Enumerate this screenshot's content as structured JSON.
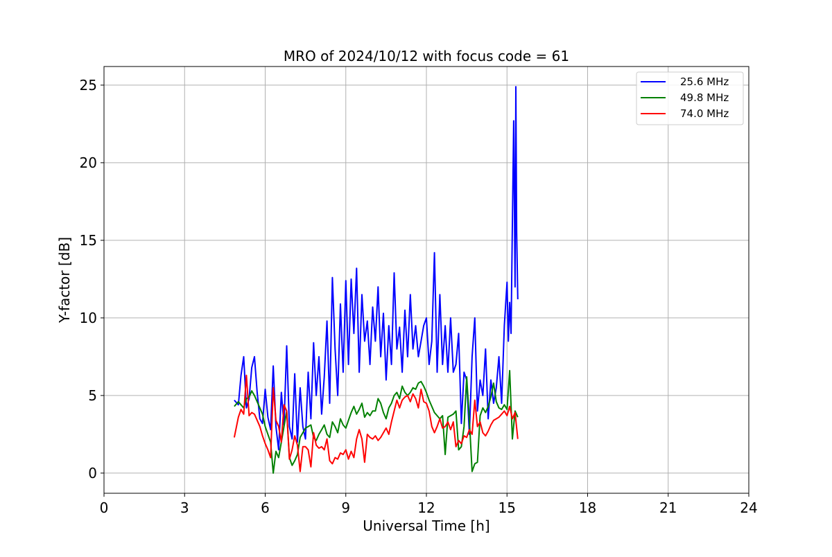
{
  "chart_data": {
    "type": "line",
    "title": "MRO of 2024/10/12 with focus code = 61",
    "xlabel": "Universal Time [h]",
    "ylabel": "Y-factor [dB]",
    "xlim": [
      0,
      24
    ],
    "ylim": [
      -1.3,
      26.2
    ],
    "xticks": [
      0,
      3,
      6,
      9,
      12,
      15,
      18,
      21,
      24
    ],
    "yticks": [
      0,
      5,
      10,
      15,
      20,
      25
    ],
    "grid": true,
    "legend_position": "top-right",
    "series": [
      {
        "name": "25.6 MHz",
        "color": "#0000ff",
        "x": [
          4.85,
          5.0,
          5.1,
          5.2,
          5.3,
          5.4,
          5.5,
          5.6,
          5.7,
          5.8,
          5.9,
          6.0,
          6.1,
          6.2,
          6.3,
          6.4,
          6.5,
          6.6,
          6.7,
          6.8,
          6.9,
          7.0,
          7.1,
          7.2,
          7.3,
          7.4,
          7.5,
          7.6,
          7.7,
          7.8,
          7.9,
          8.0,
          8.1,
          8.2,
          8.3,
          8.4,
          8.5,
          8.6,
          8.7,
          8.8,
          8.9,
          9.0,
          9.1,
          9.2,
          9.3,
          9.4,
          9.5,
          9.6,
          9.7,
          9.8,
          9.9,
          10.0,
          10.1,
          10.2,
          10.3,
          10.4,
          10.5,
          10.6,
          10.7,
          10.8,
          10.9,
          11.0,
          11.1,
          11.2,
          11.3,
          11.4,
          11.5,
          11.6,
          11.7,
          11.8,
          11.9,
          12.0,
          12.1,
          12.2,
          12.3,
          12.4,
          12.5,
          12.6,
          12.7,
          12.8,
          12.9,
          13.0,
          13.1,
          13.2,
          13.3,
          13.4,
          13.5,
          13.6,
          13.7,
          13.8,
          13.9,
          14.0,
          14.1,
          14.2,
          14.3,
          14.4,
          14.5,
          14.6,
          14.7,
          14.8,
          14.9,
          15.0,
          15.05,
          15.1,
          15.15,
          15.2,
          15.25,
          15.3,
          15.33,
          15.36,
          15.4
        ],
        "y": [
          4.7,
          4.4,
          6.3,
          7.5,
          4.2,
          4.8,
          6.8,
          7.5,
          5.2,
          3.5,
          3.2,
          5.4,
          3.6,
          2.8,
          6.9,
          3.0,
          1.5,
          5.2,
          3.1,
          8.2,
          3.0,
          2.2,
          6.4,
          2.0,
          5.5,
          3.0,
          2.2,
          6.5,
          3.5,
          8.4,
          5.0,
          7.5,
          3.8,
          6.2,
          9.8,
          4.5,
          12.6,
          8.0,
          5.0,
          10.9,
          6.5,
          12.4,
          7.0,
          12.5,
          9.0,
          13.2,
          6.5,
          11.5,
          8.5,
          9.8,
          7.0,
          10.7,
          8.5,
          12.0,
          7.5,
          10.3,
          6.0,
          9.5,
          7.0,
          12.9,
          8.0,
          9.4,
          6.5,
          10.5,
          7.5,
          11.5,
          8.0,
          9.5,
          7.5,
          8.5,
          9.5,
          10.0,
          7.0,
          8.5,
          14.2,
          6.5,
          11.5,
          7.0,
          9.5,
          6.5,
          10.0,
          6.5,
          7.0,
          9.0,
          3.2,
          6.5,
          6.0,
          2.5,
          7.5,
          10.0,
          4.0,
          6.0,
          5.0,
          8.0,
          3.5,
          6.0,
          4.5,
          5.5,
          7.5,
          4.5,
          9.5,
          12.3,
          8.5,
          11.0,
          9.0,
          16.0,
          22.7,
          12.0,
          24.9,
          15.5,
          11.2
        ]
      },
      {
        "name": "49.8 MHz",
        "color": "#008000",
        "x": [
          4.85,
          5.0,
          5.1,
          5.2,
          5.3,
          5.4,
          5.5,
          5.6,
          5.7,
          5.8,
          5.9,
          6.0,
          6.1,
          6.2,
          6.3,
          6.4,
          6.5,
          6.6,
          6.7,
          6.8,
          6.9,
          7.0,
          7.1,
          7.2,
          7.3,
          7.4,
          7.5,
          7.6,
          7.7,
          7.8,
          7.9,
          8.0,
          8.1,
          8.2,
          8.3,
          8.4,
          8.5,
          8.6,
          8.7,
          8.8,
          8.9,
          9.0,
          9.1,
          9.2,
          9.3,
          9.4,
          9.5,
          9.6,
          9.7,
          9.8,
          9.9,
          10.0,
          10.1,
          10.2,
          10.3,
          10.4,
          10.5,
          10.6,
          10.7,
          10.8,
          10.9,
          11.0,
          11.1,
          11.2,
          11.3,
          11.4,
          11.5,
          11.6,
          11.7,
          11.8,
          11.9,
          12.0,
          12.1,
          12.2,
          12.3,
          12.4,
          12.5,
          12.6,
          12.7,
          12.8,
          12.9,
          13.0,
          13.1,
          13.2,
          13.3,
          13.4,
          13.5,
          13.6,
          13.7,
          13.8,
          13.9,
          14.0,
          14.1,
          14.2,
          14.3,
          14.4,
          14.5,
          14.6,
          14.7,
          14.8,
          14.9,
          15.0,
          15.1,
          15.2,
          15.3,
          15.4
        ],
        "y": [
          4.3,
          4.6,
          4.4,
          4.2,
          4.8,
          4.9,
          5.3,
          5.0,
          4.6,
          4.2,
          3.8,
          3.0,
          2.5,
          2.0,
          0.0,
          1.4,
          1.0,
          2.0,
          3.0,
          4.0,
          1.0,
          0.5,
          0.8,
          1.2,
          2.3,
          2.6,
          2.9,
          3.0,
          3.1,
          2.3,
          2.1,
          2.5,
          2.8,
          3.1,
          2.5,
          2.3,
          3.3,
          3.0,
          2.6,
          3.5,
          3.1,
          2.9,
          3.4,
          3.9,
          4.3,
          3.8,
          4.1,
          4.5,
          3.6,
          3.9,
          3.7,
          4.0,
          4.0,
          4.8,
          4.5,
          3.9,
          3.5,
          4.2,
          4.5,
          5.0,
          5.2,
          4.8,
          5.6,
          5.2,
          5.0,
          5.2,
          5.5,
          5.4,
          5.8,
          5.9,
          5.6,
          5.2,
          4.7,
          4.3,
          3.9,
          3.7,
          3.5,
          3.7,
          1.2,
          3.6,
          3.7,
          3.8,
          4.0,
          1.5,
          1.7,
          3.0,
          6.2,
          3.4,
          0.1,
          0.6,
          0.7,
          3.7,
          4.2,
          3.9,
          4.3,
          4.9,
          5.8,
          4.6,
          4.2,
          4.1,
          4.4,
          4.1,
          6.6,
          2.2,
          4.0,
          3.6
        ]
      },
      {
        "name": "74.0 MHz",
        "color": "#ff0000",
        "x": [
          4.85,
          5.0,
          5.1,
          5.2,
          5.3,
          5.4,
          5.5,
          5.6,
          5.7,
          5.8,
          5.9,
          6.0,
          6.1,
          6.2,
          6.3,
          6.4,
          6.5,
          6.6,
          6.7,
          6.8,
          6.9,
          7.0,
          7.1,
          7.2,
          7.3,
          7.4,
          7.5,
          7.6,
          7.7,
          7.8,
          7.9,
          8.0,
          8.1,
          8.2,
          8.3,
          8.4,
          8.5,
          8.6,
          8.7,
          8.8,
          8.9,
          9.0,
          9.1,
          9.2,
          9.3,
          9.4,
          9.5,
          9.6,
          9.7,
          9.8,
          9.9,
          10.0,
          10.1,
          10.2,
          10.3,
          10.4,
          10.5,
          10.6,
          10.7,
          10.8,
          10.9,
          11.0,
          11.1,
          11.2,
          11.3,
          11.4,
          11.5,
          11.6,
          11.7,
          11.8,
          11.9,
          12.0,
          12.1,
          12.2,
          12.3,
          12.4,
          12.5,
          12.6,
          12.7,
          12.8,
          12.9,
          13.0,
          13.1,
          13.2,
          13.3,
          13.4,
          13.5,
          13.6,
          13.7,
          13.8,
          13.9,
          14.0,
          14.1,
          14.2,
          14.3,
          14.4,
          14.5,
          14.6,
          14.7,
          14.8,
          14.9,
          15.0,
          15.1,
          15.2,
          15.3,
          15.4
        ],
        "y": [
          2.3,
          3.6,
          4.1,
          3.8,
          6.3,
          3.7,
          3.9,
          3.8,
          3.4,
          3.0,
          2.4,
          1.9,
          1.5,
          1.0,
          5.5,
          3.4,
          3.0,
          2.0,
          4.4,
          4.0,
          0.9,
          1.5,
          2.4,
          1.8,
          0.1,
          1.7,
          1.7,
          1.5,
          0.4,
          2.6,
          1.8,
          1.6,
          1.7,
          1.5,
          2.2,
          0.8,
          0.6,
          1.0,
          0.9,
          1.3,
          1.2,
          1.5,
          0.9,
          1.4,
          1.0,
          2.2,
          2.8,
          2.2,
          0.7,
          2.5,
          2.3,
          2.2,
          2.4,
          2.1,
          2.3,
          2.6,
          2.9,
          2.5,
          3.3,
          4.0,
          4.7,
          4.2,
          4.7,
          4.9,
          5.0,
          4.6,
          5.1,
          4.8,
          4.2,
          5.4,
          4.6,
          4.5,
          4.0,
          3.0,
          2.6,
          3.0,
          3.5,
          2.9,
          3.0,
          3.3,
          2.8,
          3.3,
          1.7,
          2.1,
          1.9,
          2.4,
          2.3,
          2.8,
          2.5,
          4.7,
          3.0,
          3.3,
          2.6,
          2.4,
          2.7,
          3.1,
          3.4,
          3.5,
          3.6,
          3.8,
          4.0,
          3.7,
          4.3,
          3.5,
          3.9,
          2.2
        ]
      }
    ]
  }
}
